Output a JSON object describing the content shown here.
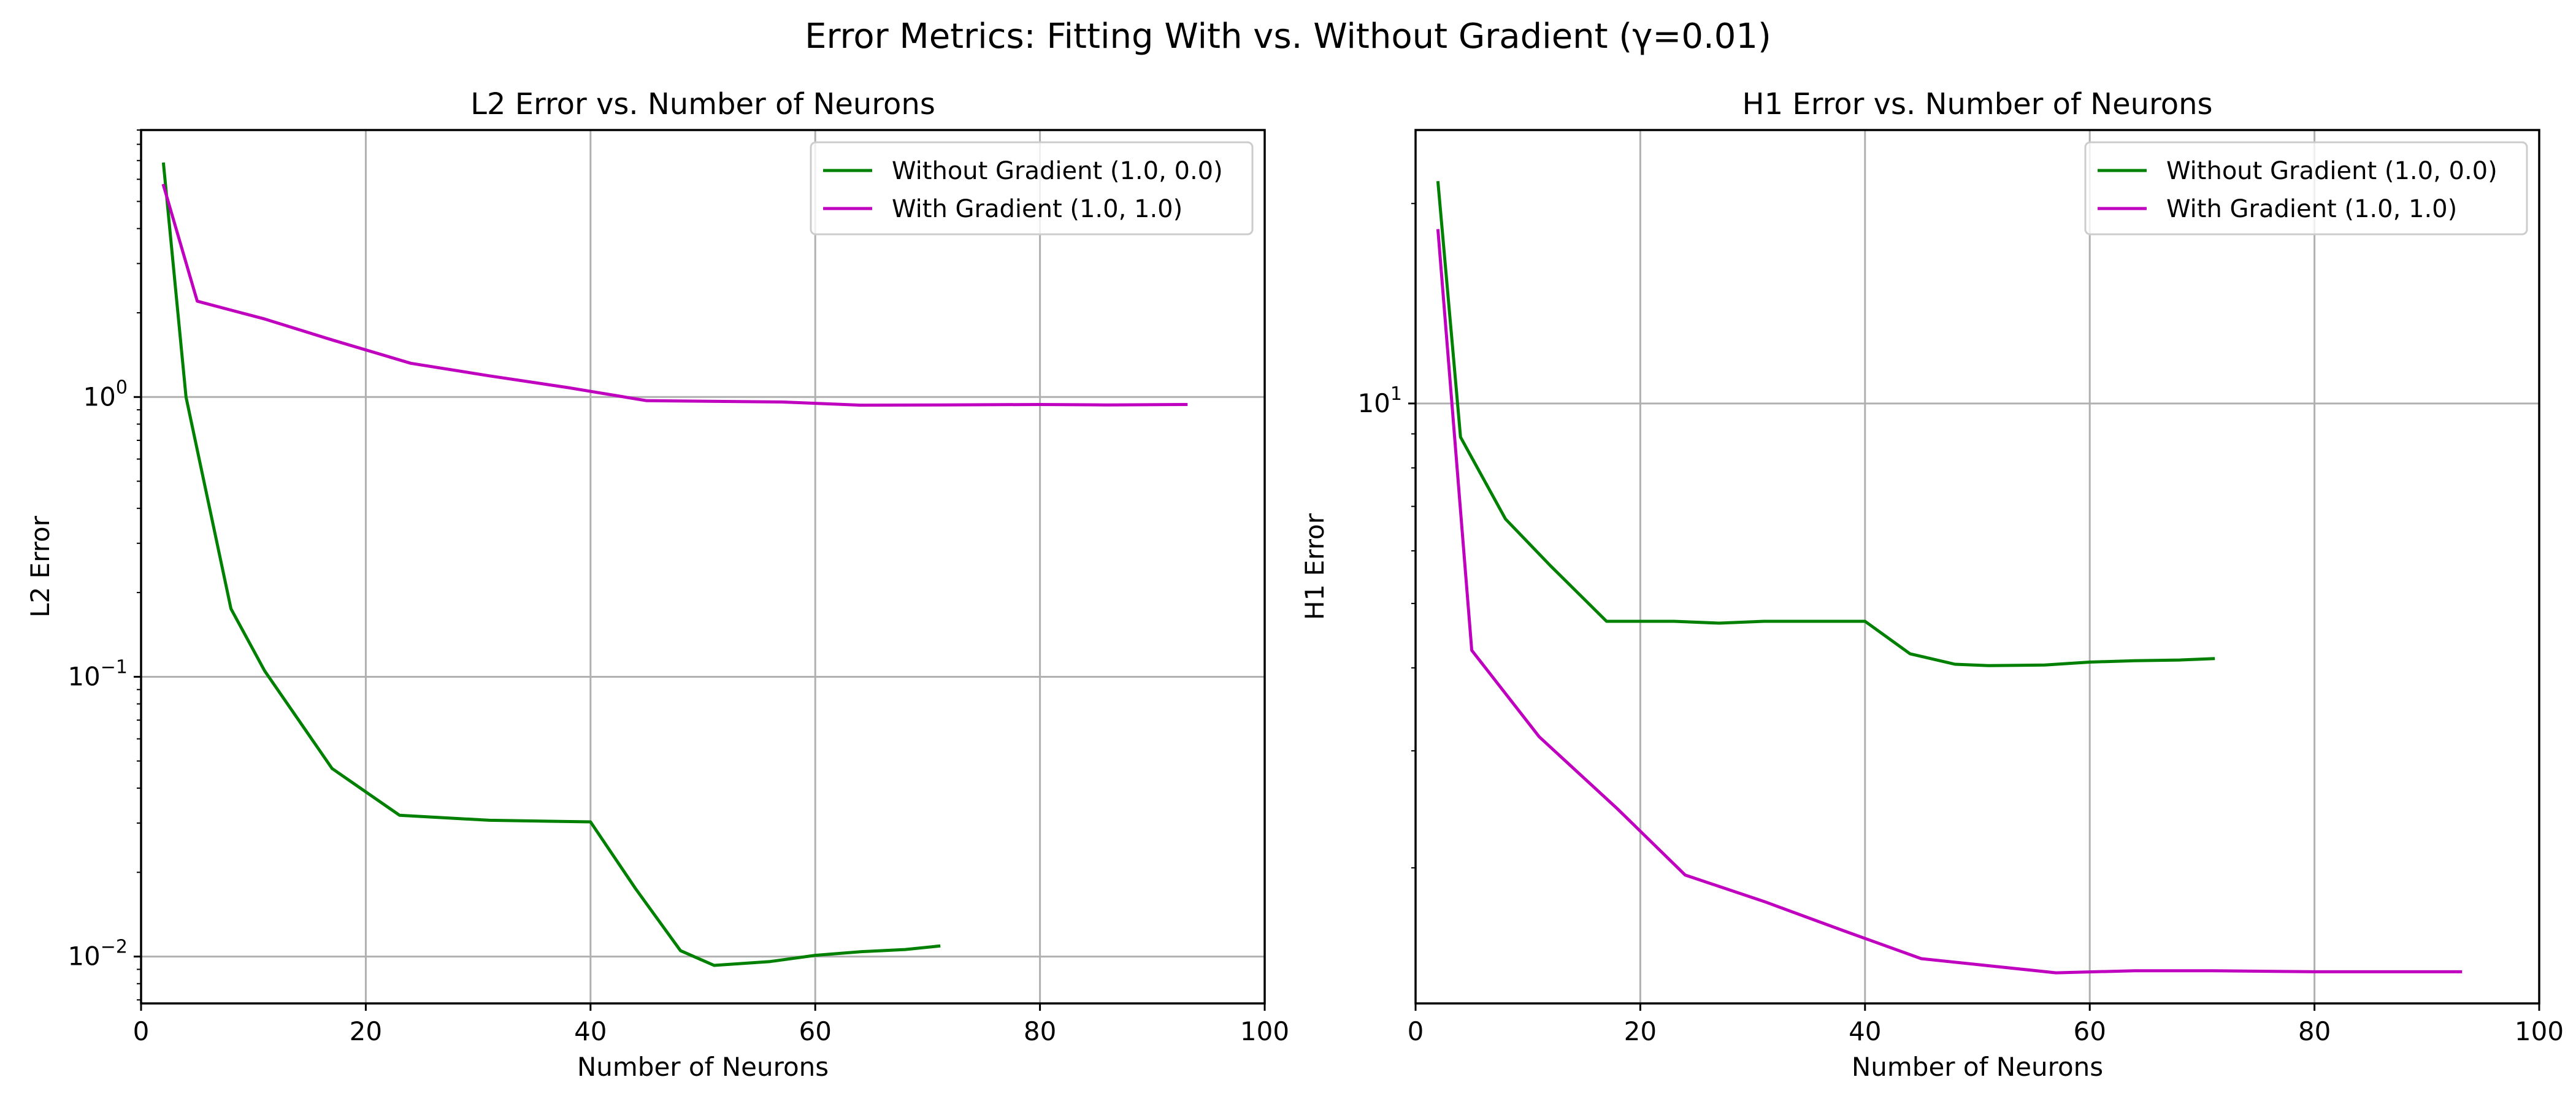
{
  "figure_title": "Error Metrics: Fitting With vs. Without Gradient (γ=0.01)",
  "chart_data": [
    {
      "type": "line",
      "title": "L2 Error vs. Number of Neurons",
      "xlabel": "Number of Neurons",
      "ylabel": "L2 Error",
      "xlim": [
        0,
        100
      ],
      "ylim": [
        0.0068,
        9.0
      ],
      "yscale": "log",
      "grid": true,
      "legend_position": "upper right",
      "xticks": [
        {
          "value": 0,
          "label": "0"
        },
        {
          "value": 20,
          "label": "20"
        },
        {
          "value": 40,
          "label": "40"
        },
        {
          "value": 60,
          "label": "60"
        },
        {
          "value": 80,
          "label": "80"
        },
        {
          "value": 100,
          "label": "100"
        }
      ],
      "yticks": [
        {
          "value": 0.01,
          "base": "10",
          "exp": "−2"
        },
        {
          "value": 0.1,
          "base": "10",
          "exp": "−1"
        },
        {
          "value": 1,
          "base": "10",
          "exp": "0"
        }
      ],
      "series": [
        {
          "name": "Without Gradient (1.0, 0.0)",
          "color": "#008000",
          "x": [
            2,
            4,
            8,
            11,
            17,
            23,
            31,
            40,
            44,
            48,
            51,
            56,
            60,
            64,
            68,
            71
          ],
          "y": [
            6.8,
            1.0,
            0.175,
            0.105,
            0.047,
            0.032,
            0.0307,
            0.0303,
            0.0175,
            0.0105,
            0.0093,
            0.0096,
            0.0101,
            0.0104,
            0.0106,
            0.0109
          ]
        },
        {
          "name": "With Gradient (1.0, 1.0)",
          "color": "#bf00bf",
          "x": [
            2,
            5,
            11,
            17,
            24,
            31,
            38,
            45,
            57,
            64,
            71,
            80,
            86,
            93
          ],
          "y": [
            5.7,
            2.2,
            1.9,
            1.6,
            1.32,
            1.19,
            1.08,
            0.97,
            0.96,
            0.935,
            0.937,
            0.94,
            0.937,
            0.94
          ]
        }
      ]
    },
    {
      "type": "line",
      "title": "H1 Error vs. Number of Neurons",
      "xlabel": "Number of Neurons",
      "ylabel": "H1 Error",
      "xlim": [
        0,
        100
      ],
      "ylim": [
        1.25,
        25.8
      ],
      "yscale": "log",
      "grid": true,
      "legend_position": "upper right",
      "xticks": [
        {
          "value": 0,
          "label": "0"
        },
        {
          "value": 20,
          "label": "20"
        },
        {
          "value": 40,
          "label": "40"
        },
        {
          "value": 60,
          "label": "60"
        },
        {
          "value": 80,
          "label": "80"
        },
        {
          "value": 100,
          "label": "100"
        }
      ],
      "yticks": [
        {
          "value": 10,
          "base": "10",
          "exp": "1"
        }
      ],
      "series": [
        {
          "name": "Without Gradient (1.0, 0.0)",
          "color": "#008000",
          "x": [
            2,
            4,
            8,
            12,
            17,
            23,
            27,
            31,
            36,
            40,
            44,
            48,
            51,
            56,
            60,
            64,
            68,
            71
          ],
          "y": [
            21.5,
            8.9,
            6.7,
            5.7,
            4.7,
            4.7,
            4.67,
            4.7,
            4.7,
            4.7,
            4.2,
            4.05,
            4.03,
            4.04,
            4.08,
            4.1,
            4.11,
            4.13
          ]
        },
        {
          "name": "With Gradient (1.0, 1.0)",
          "color": "#bf00bf",
          "x": [
            2,
            5,
            11,
            18,
            24,
            31,
            38,
            45,
            57,
            64,
            71,
            80,
            86,
            93
          ],
          "y": [
            18.2,
            4.25,
            3.15,
            2.45,
            1.95,
            1.78,
            1.61,
            1.46,
            1.39,
            1.4,
            1.4,
            1.395,
            1.395,
            1.395
          ]
        }
      ]
    }
  ]
}
